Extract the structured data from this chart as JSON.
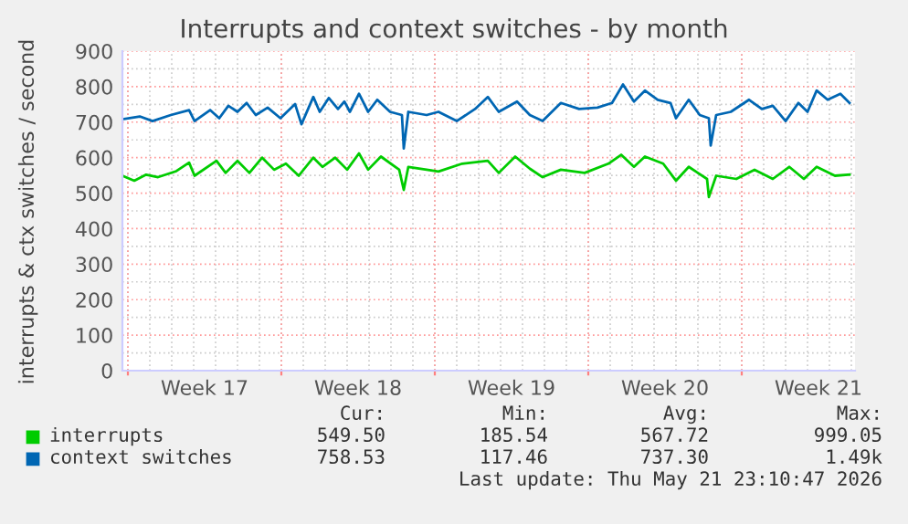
{
  "chart_data": {
    "type": "line",
    "title": "Interrupts and context switches - by month",
    "ylabel": "interrupts & ctx switches / second",
    "xlim": [
      "2026-04-18T18:00",
      "2026-05-22T04:00"
    ],
    "xticks": [
      {
        "value": "2026-04-19",
        "label": null
      },
      {
        "value": "2026-04-22T12:00",
        "label": "Week 17"
      },
      {
        "value": "2026-04-26",
        "label": null
      },
      {
        "value": "2026-04-29T12:00",
        "label": "Week 18"
      },
      {
        "value": "2026-05-03",
        "label": null
      },
      {
        "value": "2026-05-06T12:00",
        "label": "Week 19"
      },
      {
        "value": "2026-05-10",
        "label": null
      },
      {
        "value": "2026-05-13T12:00",
        "label": "Week 20"
      },
      {
        "value": "2026-05-17",
        "label": null
      },
      {
        "value": "2026-05-20T12:00",
        "label": "Week 21"
      }
    ],
    "ylim": [
      0,
      900
    ],
    "yticks": [
      0,
      100,
      200,
      300,
      400,
      500,
      600,
      700,
      800,
      900
    ],
    "grid": true,
    "legend": "bottom",
    "marker": "none",
    "line_style": "solid",
    "series": [
      {
        "name": "interrupts",
        "color": "#00cc00",
        "x": [
          "2026-04-18T18:00",
          "2026-04-19T07:00",
          "2026-04-19T20:00",
          "2026-04-20T09:00",
          "2026-04-21T05:00",
          "2026-04-21T19:00",
          "2026-04-22T01:00",
          "2026-04-23T01:00",
          "2026-04-23T11:00",
          "2026-04-24T00:00",
          "2026-04-24T13:00",
          "2026-04-25T03:00",
          "2026-04-25T16:00",
          "2026-04-26T05:00",
          "2026-04-26T19:00",
          "2026-04-27T11:00",
          "2026-04-27T21:00",
          "2026-04-28T11:00",
          "2026-04-29T00:00",
          "2026-04-29T13:00",
          "2026-04-29T23:00",
          "2026-04-30T13:00",
          "2026-05-01T09:00",
          "2026-05-01T14:00",
          "2026-05-01T19:00",
          "2026-05-02T15:00",
          "2026-05-03T04:00",
          "2026-05-04T06:00",
          "2026-05-05T10:00",
          "2026-05-05T22:00",
          "2026-05-06T16:00",
          "2026-05-07T08:00",
          "2026-05-07T22:00",
          "2026-05-08T18:00",
          "2026-05-09T20:00",
          "2026-05-10T22:00",
          "2026-05-11T12:00",
          "2026-05-12T02:00",
          "2026-05-12T14:00",
          "2026-05-13T10:00",
          "2026-05-14T00:00",
          "2026-05-14T14:00",
          "2026-05-15T10:00",
          "2026-05-15T12:00",
          "2026-05-15T20:00",
          "2026-05-16T18:00",
          "2026-05-17T14:00",
          "2026-05-18T10:00",
          "2026-05-19T04:00",
          "2026-05-19T20:00",
          "2026-05-20T10:00",
          "2026-05-21T06:00",
          "2026-05-21T22:00"
        ],
        "values": [
          549,
          535,
          552,
          545,
          562,
          586,
          549,
          591,
          557,
          591,
          557,
          600,
          566,
          583,
          549,
          600,
          574,
          600,
          566,
          612,
          566,
          603,
          566,
          509,
          574,
          566,
          561,
          583,
          591,
          557,
          603,
          569,
          545,
          566,
          557,
          583,
          608,
          574,
          603,
          583,
          535,
          574,
          540,
          489,
          549,
          540,
          566,
          540,
          574,
          540,
          574,
          549,
          552
        ]
      },
      {
        "name": "context switches",
        "color": "#0066b3",
        "x": [
          "2026-04-18T18:00",
          "2026-04-19T13:00",
          "2026-04-20T03:00",
          "2026-04-20T23:00",
          "2026-04-21T19:00",
          "2026-04-22T01:00",
          "2026-04-22T18:00",
          "2026-04-23T04:00",
          "2026-04-23T14:00",
          "2026-04-24T00:00",
          "2026-04-24T10:00",
          "2026-04-24T20:00",
          "2026-04-25T09:00",
          "2026-04-25T23:00",
          "2026-04-26T15:00",
          "2026-04-26T22:00",
          "2026-04-27T11:00",
          "2026-04-27T18:00",
          "2026-04-28T04:00",
          "2026-04-28T14:00",
          "2026-04-28T21:00",
          "2026-04-29T03:00",
          "2026-04-29T13:00",
          "2026-04-29T23:00",
          "2026-04-30T09:00",
          "2026-04-30T23:00",
          "2026-05-01T12:00",
          "2026-05-01T14:00",
          "2026-05-01T19:00",
          "2026-05-02T15:00",
          "2026-05-03T04:00",
          "2026-05-04T00:00",
          "2026-05-04T20:00",
          "2026-05-05T10:00",
          "2026-05-05T22:00",
          "2026-05-06T18:00",
          "2026-05-07T08:00",
          "2026-05-07T22:00",
          "2026-05-08T18:00",
          "2026-05-09T14:00",
          "2026-05-10T10:00",
          "2026-05-11T02:00",
          "2026-05-11T14:00",
          "2026-05-12T02:00",
          "2026-05-12T14:00",
          "2026-05-13T04:00",
          "2026-05-13T18:00",
          "2026-05-14T00:00",
          "2026-05-14T14:00",
          "2026-05-15T02:00",
          "2026-05-15T12:00",
          "2026-05-15T14:00",
          "2026-05-15T20:00",
          "2026-05-16T12:00",
          "2026-05-17T08:00",
          "2026-05-17T22:00",
          "2026-05-18T10:00",
          "2026-05-19T00:00",
          "2026-05-19T14:00",
          "2026-05-20T00:00",
          "2026-05-20T10:00",
          "2026-05-20T22:00",
          "2026-05-21T12:00",
          "2026-05-21T22:00"
        ],
        "values": [
          708,
          716,
          703,
          720,
          734,
          703,
          734,
          711,
          746,
          729,
          754,
          720,
          741,
          711,
          751,
          694,
          771,
          729,
          768,
          737,
          758,
          729,
          780,
          729,
          763,
          729,
          720,
          626,
          729,
          720,
          729,
          703,
          737,
          771,
          729,
          758,
          720,
          703,
          754,
          737,
          741,
          754,
          806,
          758,
          789,
          763,
          754,
          711,
          763,
          720,
          711,
          634,
          720,
          729,
          763,
          737,
          746,
          703,
          754,
          729,
          789,
          763,
          780,
          754
        ]
      }
    ],
    "annotations": [
      "Cur:",
      "Min:",
      "Avg:",
      "Max:",
      "549.50",
      "185.54",
      "567.72",
      "999.05",
      "758.53",
      "117.46",
      "737.30",
      "1.49k",
      "Last update: Thu May 21 23:10:47 2026"
    ]
  }
}
